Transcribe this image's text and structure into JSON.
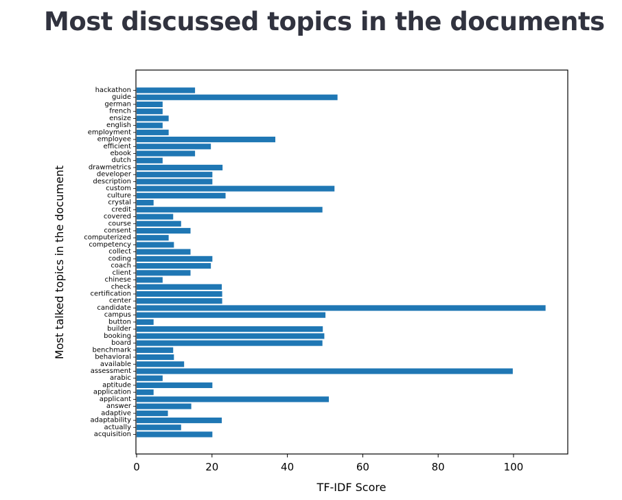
{
  "page": {
    "title": "Most discussed topics in the documents"
  },
  "chart_data": {
    "type": "bar",
    "orientation": "horizontal",
    "title": "",
    "xlabel": "TF-IDF Score",
    "ylabel": "Most talked topics in the document",
    "xlim": [
      0,
      114
    ],
    "xticks": [
      0,
      20,
      40,
      60,
      80,
      100
    ],
    "grid": false,
    "bar_color": "#1f77b4",
    "categories": [
      "acquisition",
      "actually",
      "adaptability",
      "adaptive",
      "answer",
      "applicant",
      "application",
      "aptitude",
      "arabic",
      "assessment",
      "available",
      "behavioral",
      "benchmark",
      "board",
      "booking",
      "builder",
      "button",
      "campus",
      "candidate",
      "center",
      "certification",
      "check",
      "chinese",
      "client",
      "coach",
      "coding",
      "collect",
      "competency",
      "computerized",
      "consent",
      "course",
      "covered",
      "credit",
      "crystal",
      "culture",
      "custom",
      "description",
      "developer",
      "drawmetrics",
      "dutch",
      "ebook",
      "efficient",
      "employee",
      "employment",
      "english",
      "ensize",
      "french",
      "german",
      "guide",
      "hackathon"
    ],
    "values": [
      20.1,
      11.8,
      22.6,
      8.3,
      14.5,
      51.0,
      4.5,
      20.1,
      6.9,
      99.8,
      12.6,
      9.9,
      9.7,
      49.3,
      49.8,
      49.4,
      4.5,
      50.1,
      108.5,
      22.7,
      22.7,
      22.6,
      6.9,
      14.3,
      19.7,
      20.1,
      14.3,
      9.9,
      8.5,
      14.3,
      11.8,
      9.7,
      49.3,
      4.5,
      23.6,
      52.5,
      20.1,
      20.1,
      22.8,
      6.9,
      15.5,
      19.7,
      36.8,
      8.5,
      6.9,
      8.5,
      6.9,
      6.9,
      53.3,
      15.5
    ]
  }
}
